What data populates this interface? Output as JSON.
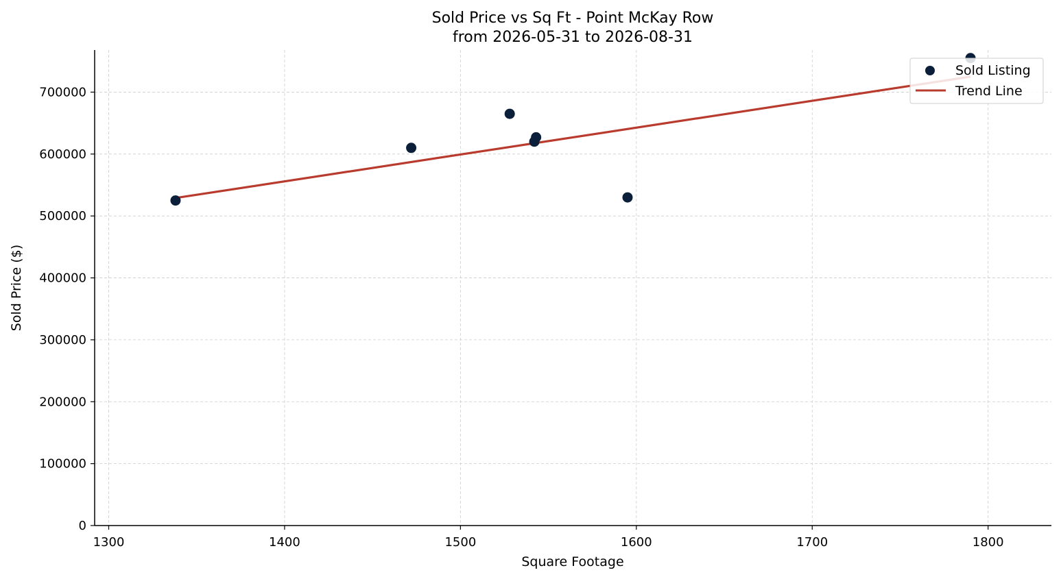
{
  "chart_data": {
    "type": "scatter",
    "title": "Sold Price vs Sq Ft - Point McKay Row",
    "subtitle": "from 2026-05-31 to 2026-08-31",
    "xlabel": "Square Footage",
    "ylabel": "Sold Price ($)",
    "xlim": [
      1292,
      1836
    ],
    "ylim": [
      0,
      768000
    ],
    "x_ticks": [
      1300,
      1400,
      1500,
      1600,
      1700,
      1800
    ],
    "y_ticks": [
      0,
      100000,
      200000,
      300000,
      400000,
      500000,
      600000,
      700000
    ],
    "grid": true,
    "legend_position": "top-right",
    "series": [
      {
        "name": "Sold Listing",
        "type": "scatter",
        "color": "#0b1f3a",
        "x": [
          1338,
          1472,
          1528,
          1542,
          1543,
          1595,
          1790
        ],
        "y": [
          525000,
          610000,
          665000,
          620000,
          627000,
          530000,
          755000
        ]
      },
      {
        "name": "Trend Line",
        "type": "line",
        "color": "#b83b2e",
        "x": [
          1338,
          1790
        ],
        "y": [
          529000,
          725000
        ]
      }
    ]
  }
}
